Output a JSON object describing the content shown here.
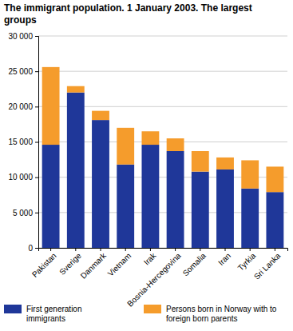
{
  "chart_data": {
    "type": "bar",
    "stacked": true,
    "grid": true,
    "title": "The immigrant population. 1 January 2003. The largest groups",
    "categories": [
      "Pakistan",
      "Sverige",
      "Danmark",
      "Vietnam",
      "Irak",
      "Bosnia-Hercegovina",
      "Somalia",
      "Iran",
      "Tyrkia",
      "Sri Lanka"
    ],
    "series": [
      {
        "name": "First generation immigrants",
        "color": "#1f3799",
        "values": [
          14600,
          22000,
          18100,
          11800,
          14600,
          13700,
          10800,
          11100,
          8400,
          7900
        ]
      },
      {
        "name": "Persons born in Norway with to foreign born parents",
        "color": "#f59c2c",
        "values": [
          11000,
          900,
          1300,
          5200,
          1900,
          1800,
          2900,
          1700,
          4000,
          3600
        ]
      }
    ],
    "ylim": [
      0,
      30000
    ],
    "yticks": [
      0,
      {
        "value": 5000,
        "label": "5 000"
      },
      {
        "value": 10000,
        "label": "10 000"
      },
      {
        "value": 15000,
        "label": "15 000"
      },
      {
        "value": 20000,
        "label": "20 000"
      },
      {
        "value": 25000,
        "label": "25 000"
      },
      {
        "value": 30000,
        "label": "30 000"
      }
    ],
    "legend": "bottom"
  }
}
